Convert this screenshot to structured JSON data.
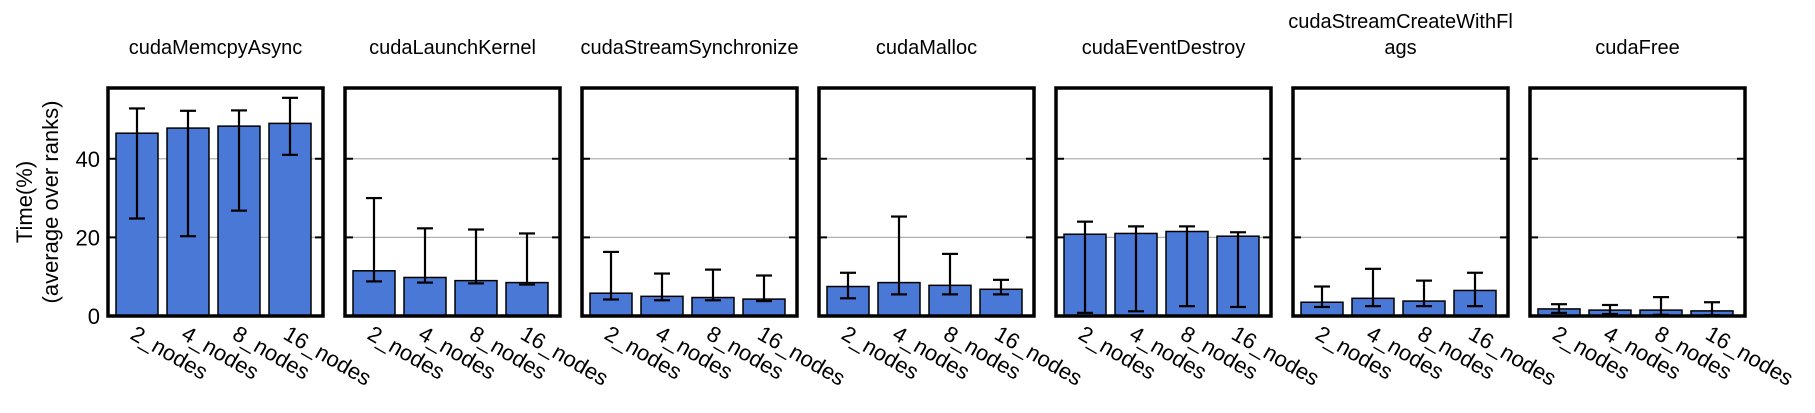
{
  "colors": {
    "bar": "#4a78d6",
    "grid": "#b0b0b0",
    "frame": "#000000"
  },
  "chart_data": {
    "type": "bar",
    "ylabel": [
      "Time(%)",
      "(average over ranks)"
    ],
    "ylim": [
      0,
      58
    ],
    "yticks": [
      0,
      20,
      40
    ],
    "grid": true,
    "categories": [
      "2_nodes",
      "4_nodes",
      "8_nodes",
      "16_nodes"
    ],
    "panels": [
      {
        "title": [
          "cudaMemcpyAsync"
        ],
        "values": [
          46.5,
          47.8,
          48.3,
          49.0
        ],
        "err_low": [
          24.8,
          20.3,
          26.8,
          41.0
        ],
        "err_high": [
          52.8,
          52.2,
          52.3,
          55.5
        ]
      },
      {
        "title": [
          "cudaLaunchKernel"
        ],
        "values": [
          11.5,
          9.8,
          9.0,
          8.5
        ],
        "err_low": [
          8.8,
          8.5,
          8.3,
          8.0
        ],
        "err_high": [
          30.0,
          22.3,
          22.0,
          21.0
        ]
      },
      {
        "title": [
          "cudaStreamSynchronize"
        ],
        "values": [
          5.8,
          5.0,
          4.7,
          4.3
        ],
        "err_low": [
          4.2,
          4.0,
          4.0,
          3.8
        ],
        "err_high": [
          16.3,
          10.8,
          11.8,
          10.3
        ]
      },
      {
        "title": [
          "cudaMalloc"
        ],
        "values": [
          7.5,
          8.5,
          7.8,
          6.8
        ],
        "err_low": [
          4.5,
          5.5,
          5.5,
          5.5
        ],
        "err_high": [
          11.0,
          25.3,
          15.8,
          9.2
        ]
      },
      {
        "title": [
          "cudaEventDestroy"
        ],
        "values": [
          20.8,
          21.0,
          21.5,
          20.3
        ],
        "err_low": [
          0.8,
          1.2,
          2.5,
          2.3
        ],
        "err_high": [
          24.0,
          22.8,
          22.8,
          21.3
        ]
      },
      {
        "title": [
          "cudaStreamCreateWithFl",
          "ags"
        ],
        "values": [
          3.5,
          4.5,
          3.8,
          6.5
        ],
        "err_low": [
          2.3,
          2.5,
          2.5,
          2.5
        ],
        "err_high": [
          7.5,
          12.0,
          9.0,
          11.0
        ]
      },
      {
        "title": [
          "cudaFree"
        ],
        "values": [
          1.8,
          1.5,
          1.5,
          1.3
        ],
        "err_low": [
          0.8,
          0.5,
          0.3,
          0.2
        ],
        "err_high": [
          3.0,
          2.8,
          4.8,
          3.5
        ]
      }
    ]
  }
}
